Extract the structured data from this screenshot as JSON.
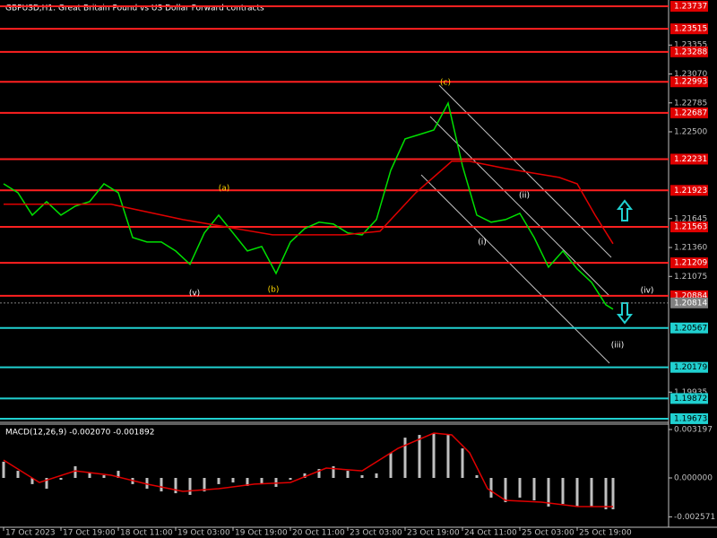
{
  "chart_data": [
    {
      "type": "line",
      "title": "GBPUSD,H1:  Great Britain Pound vs US Dollar Forward contracts",
      "x": [
        0,
        4,
        8,
        12,
        16,
        20,
        24,
        28,
        32,
        36,
        40,
        44,
        48,
        52,
        56,
        60,
        64,
        68,
        72,
        76,
        80,
        84,
        88,
        92,
        96,
        100,
        104,
        108,
        112,
        116,
        120,
        124,
        128,
        132,
        136,
        140,
        144,
        148,
        152,
        156,
        160,
        164,
        168,
        170
      ],
      "series": [
        {
          "name": "Close",
          "color": "#00e000",
          "values": [
            1.21988,
            1.219,
            1.21679,
            1.21812,
            1.21679,
            1.21768,
            1.21812,
            1.21988,
            1.219,
            1.21458,
            1.21414,
            1.21414,
            1.21326,
            1.21194,
            1.21503,
            1.21679,
            1.21503,
            1.21326,
            1.2137,
            1.21105,
            1.21414,
            1.21547,
            1.21609,
            1.21591,
            1.21503,
            1.21485,
            1.21635,
            1.22121,
            1.2243,
            1.22474,
            1.22518,
            1.22783,
            1.22165,
            1.21679,
            1.21609,
            1.21635,
            1.21697,
            1.21458,
            1.21167,
            1.21326,
            1.21149,
            1.21017,
            1.20796,
            1.20752
          ]
        },
        {
          "name": "MA",
          "color": "#e00000",
          "x": [
            0,
            30,
            50,
            75,
            95,
            105,
            115,
            125,
            130,
            140,
            155,
            160,
            165,
            170
          ],
          "values": [
            1.21786,
            1.21786,
            1.21635,
            1.21485,
            1.21485,
            1.2152,
            1.219,
            1.22209,
            1.22209,
            1.22139,
            1.2205,
            1.21988,
            1.21679,
            1.21397
          ]
        }
      ],
      "xlim": [
        -1,
        185.5
      ],
      "xticks": [
        {
          "value": 0,
          "label": "17 Oct 2023"
        },
        {
          "value": 16,
          "label": "17 Oct 19:00"
        },
        {
          "value": 32,
          "label": "18 Oct 11:00"
        },
        {
          "value": 48,
          "label": "19 Oct 03:00"
        },
        {
          "value": 64,
          "label": "19 Oct 19:00"
        },
        {
          "value": 80,
          "label": "20 Oct 11:00"
        },
        {
          "value": 96,
          "label": "23 Oct 03:00"
        },
        {
          "value": 112,
          "label": "23 Oct 19:00"
        },
        {
          "value": 128,
          "label": "24 Oct 11:00"
        },
        {
          "value": 144,
          "label": "25 Oct 03:00"
        },
        {
          "value": 160,
          "label": "25 Oct 19:00"
        }
      ],
      "ylim": [
        1.19646,
        1.23799
      ],
      "yticks": [
        {
          "value": 1.23355,
          "label": "1.23355"
        },
        {
          "value": 1.2307,
          "label": "1.23070"
        },
        {
          "value": 1.22785,
          "label": "1.22785"
        },
        {
          "value": 1.225,
          "label": "1.22500"
        },
        {
          "value": 1.21645,
          "label": "1.21645"
        },
        {
          "value": 1.2136,
          "label": "1.21360"
        },
        {
          "value": 1.21075,
          "label": "1.21075"
        },
        {
          "value": 1.19935,
          "label": "1.19935"
        }
      ],
      "levels": [
        {
          "value": 1.23737,
          "label": "1.23737",
          "color": "#ff2020"
        },
        {
          "value": 1.23515,
          "label": "1.23515",
          "color": "#ff2020"
        },
        {
          "value": 1.23288,
          "label": "1.23288",
          "color": "#ff2020"
        },
        {
          "value": 1.22993,
          "label": "1.22993",
          "color": "#ff2020"
        },
        {
          "value": 1.22687,
          "label": "1.22687",
          "color": "#ff2020"
        },
        {
          "value": 1.22231,
          "label": "1.22231",
          "color": "#ff2020"
        },
        {
          "value": 1.21923,
          "label": "1.21923",
          "color": "#ff2020"
        },
        {
          "value": 1.21563,
          "label": "1.21563",
          "color": "#ff2020"
        },
        {
          "value": 1.21209,
          "label": "1.21209",
          "color": "#ff2020"
        },
        {
          "value": 1.20884,
          "label": "1.20884",
          "color": "#ff2020"
        },
        {
          "value": 1.20567,
          "label": "1.20567",
          "color": "#20d0d0"
        },
        {
          "value": 1.20179,
          "label": "1.20179",
          "color": "#20d0d0"
        },
        {
          "value": 1.19872,
          "label": "1.19872",
          "color": "#20d0d0"
        },
        {
          "value": 1.19673,
          "label": "1.19673",
          "color": "#20d0d0"
        }
      ],
      "current_price": {
        "value": 1.20814,
        "label": "1.20814"
      },
      "annotations": [
        "(c)",
        "(a)",
        "(b)",
        "(v)",
        "(ii)",
        "(i)",
        "(iv)",
        "(iii)"
      ]
    },
    {
      "type": "bar",
      "title": "MACD(12,26,9) -0.002070 -0.001892",
      "x": [
        0,
        4,
        8,
        12,
        16,
        20,
        24,
        28,
        32,
        36,
        40,
        44,
        48,
        52,
        56,
        60,
        64,
        68,
        72,
        76,
        80,
        84,
        88,
        92,
        96,
        100,
        104,
        108,
        112,
        116,
        120,
        124,
        128,
        132,
        136,
        140,
        144,
        148,
        152,
        156,
        160,
        164,
        168,
        170
      ],
      "series": [
        {
          "name": "MACD",
          "color": "#c0c0c0",
          "values": [
            0.00107,
            0.00047,
            -0.00041,
            -0.00071,
            -0.00012,
            0.00077,
            0.00036,
            0.00018,
            0.00047,
            -0.00041,
            -0.00071,
            -0.00089,
            -0.00101,
            -0.00112,
            -0.00089,
            -0.00041,
            -0.0003,
            -0.00053,
            -0.00041,
            -0.00059,
            -0.00012,
            0.0003,
            0.00059,
            0.00077,
            0.00047,
            0.00018,
            0.0003,
            0.00166,
            0.00266,
            0.00284,
            0.00296,
            0.0029,
            0.00195,
            0.00018,
            -0.0013,
            -0.0016,
            -0.0013,
            -0.00148,
            -0.00189,
            -0.00172,
            -0.00189,
            -0.00189,
            -0.00207,
            -0.00207
          ]
        },
        {
          "name": "Signal",
          "color": "#e00000",
          "x": [
            0,
            10,
            20,
            30,
            40,
            50,
            60,
            70,
            80,
            90,
            100,
            110,
            120,
            125,
            130,
            135,
            140,
            150,
            160,
            170
          ],
          "values": [
            0.00118,
            -0.0003,
            0.00047,
            0.00018,
            -0.00041,
            -0.00089,
            -0.00071,
            -0.00041,
            -0.0003,
            0.00065,
            0.00047,
            0.00195,
            0.00296,
            0.00284,
            0.00166,
            -0.00071,
            -0.00148,
            -0.0016,
            -0.00189,
            -0.001892
          ]
        }
      ],
      "ylim": [
        -0.003256,
        0.003493
      ],
      "yticks": [
        0.003197,
        {
          "value": 0,
          "label": "0.000000"
        },
        -0.002571
      ]
    }
  ]
}
